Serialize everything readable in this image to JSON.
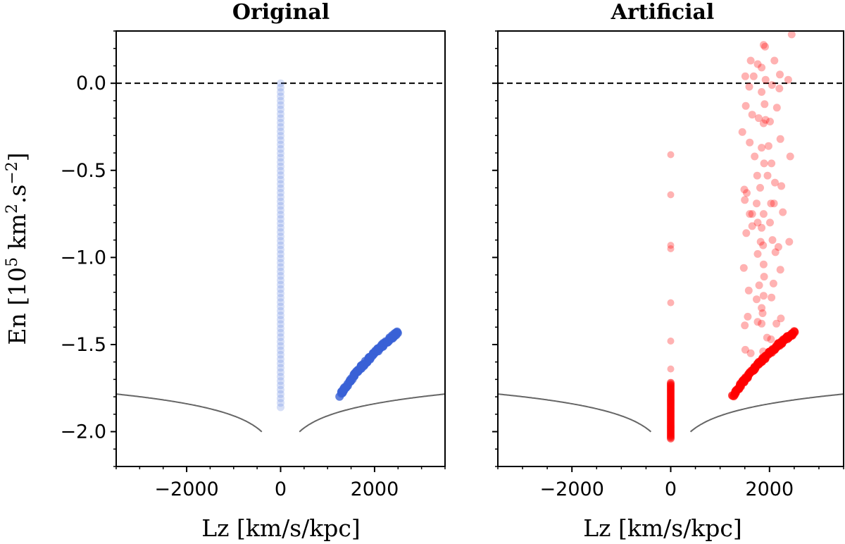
{
  "chart_data": [
    {
      "type": "scatter",
      "title": "Original",
      "xlabel": "Lz [km/s/kpc]",
      "ylabel": "En [10^5 km^2.s^-2]",
      "ylabel_parts": {
        "pre": "En [10",
        "exp1": "5",
        "mid": " km",
        "exp2": "2",
        "post1": ".s",
        "exp3": "−2",
        "post2": "]"
      },
      "xlim": [
        -3500,
        3500
      ],
      "ylim": [
        -2.2,
        0.3
      ],
      "xticks": [
        -2000,
        0,
        2000
      ],
      "xtick_labels": [
        "−2000",
        "0",
        "2000"
      ],
      "yticks": [
        0.0,
        -0.5,
        -1.0,
        -1.5,
        -2.0
      ],
      "ytick_labels": [
        "0.0",
        "−0.5",
        "−1.0",
        "−1.5",
        "−2.0"
      ],
      "hline": 0.0,
      "curve": "circular-orbit energy envelope",
      "series": [
        {
          "name": "vertical column",
          "color": "#5b7fe0",
          "alpha": 0.25,
          "lz": 0,
          "en_range": [
            -1.86,
            0.0
          ],
          "n": 75
        },
        {
          "name": "disc band",
          "color": "#3a62d6",
          "lz_range": [
            1270,
            2500
          ],
          "en_range": [
            -1.79,
            -1.43
          ],
          "n": 120
        }
      ]
    },
    {
      "type": "scatter",
      "title": "Artificial",
      "xlabel": "Lz [km/s/kpc]",
      "xlim": [
        -3500,
        3500
      ],
      "ylim": [
        -2.2,
        0.3
      ],
      "xticks": [
        -2000,
        0,
        2000
      ],
      "xtick_labels": [
        "−2000",
        "0",
        "2000"
      ],
      "hline": 0.0,
      "series": [
        {
          "name": "column cluster",
          "color": "#ff0000",
          "lz": 0,
          "en_range": [
            -2.04,
            -1.72
          ],
          "n": 40
        },
        {
          "name": "column scattered",
          "color": "#ff0000",
          "lz": 0,
          "en": [
            -0.41,
            -0.64,
            -0.93,
            -0.95,
            -1.26,
            -1.48,
            -1.64
          ]
        },
        {
          "name": "disc band",
          "color": "#ff0000",
          "lz_range": [
            1270,
            2500
          ],
          "en_range": [
            -1.79,
            -1.43
          ],
          "n": 120
        },
        {
          "name": "scattered cloud",
          "color": "#ff0000",
          "points": [
            [
              1880,
              0.22
            ],
            [
              1910,
              0.21
            ],
            [
              2450,
              0.28
            ],
            [
              1620,
              0.13
            ],
            [
              1760,
              0.11
            ],
            [
              1840,
              0.09
            ],
            [
              2100,
              0.13
            ],
            [
              2210,
              0.05
            ],
            [
              1510,
              0.04
            ],
            [
              1680,
              0.04
            ],
            [
              1920,
              0.02
            ],
            [
              2380,
              0.02
            ],
            [
              2050,
              -0.01
            ],
            [
              1590,
              -0.02
            ],
            [
              1840,
              -0.05
            ],
            [
              2200,
              -0.03
            ],
            [
              1520,
              -0.13
            ],
            [
              1900,
              -0.12
            ],
            [
              2150,
              -0.14
            ],
            [
              1650,
              -0.18
            ],
            [
              1780,
              -0.2
            ],
            [
              1920,
              -0.21
            ],
            [
              1880,
              -0.23
            ],
            [
              2010,
              -0.22
            ],
            [
              1450,
              -0.28
            ],
            [
              1600,
              -0.34
            ],
            [
              1980,
              -0.36
            ],
            [
              2220,
              -0.32
            ],
            [
              1840,
              -0.37
            ],
            [
              1700,
              -0.42
            ],
            [
              2420,
              -0.42
            ],
            [
              1890,
              -0.46
            ],
            [
              2040,
              -0.46
            ],
            [
              1750,
              -0.53
            ],
            [
              1960,
              -0.53
            ],
            [
              2110,
              -0.57
            ],
            [
              1490,
              -0.61
            ],
            [
              1540,
              -0.63
            ],
            [
              1810,
              -0.6
            ],
            [
              2240,
              -0.59
            ],
            [
              1500,
              -0.67
            ],
            [
              1740,
              -0.69
            ],
            [
              2030,
              -0.69
            ],
            [
              2090,
              -0.69
            ],
            [
              1600,
              -0.75
            ],
            [
              1650,
              -0.75
            ],
            [
              1880,
              -0.75
            ],
            [
              2270,
              -0.74
            ],
            [
              1650,
              -0.82
            ],
            [
              1760,
              -0.8
            ],
            [
              1840,
              -0.83
            ],
            [
              2010,
              -0.8
            ],
            [
              1530,
              -0.86
            ],
            [
              1820,
              -0.91
            ],
            [
              1870,
              -0.93
            ],
            [
              2060,
              -0.9
            ],
            [
              2180,
              -0.94
            ],
            [
              2400,
              -0.91
            ],
            [
              1760,
              -0.98
            ],
            [
              2120,
              -0.97
            ],
            [
              1880,
              -1.04
            ],
            [
              1480,
              -1.06
            ],
            [
              1890,
              -1.11
            ],
            [
              2220,
              -1.07
            ],
            [
              1790,
              -1.16
            ],
            [
              2080,
              -1.15
            ],
            [
              1580,
              -1.19
            ],
            [
              1880,
              -1.22
            ],
            [
              1740,
              -1.24
            ],
            [
              2040,
              -1.23
            ],
            [
              1840,
              -1.29
            ],
            [
              1860,
              -1.32
            ],
            [
              1560,
              -1.34
            ],
            [
              2230,
              -1.35
            ],
            [
              1760,
              -1.37
            ],
            [
              1840,
              -1.38
            ],
            [
              1500,
              -1.39
            ],
            [
              2140,
              -1.38
            ],
            [
              2030,
              -1.47
            ],
            [
              1950,
              -1.46
            ],
            [
              2310,
              -1.47
            ],
            [
              1510,
              -1.53
            ],
            [
              1620,
              -1.55
            ],
            [
              1870,
              -1.54
            ]
          ]
        }
      ]
    }
  ]
}
